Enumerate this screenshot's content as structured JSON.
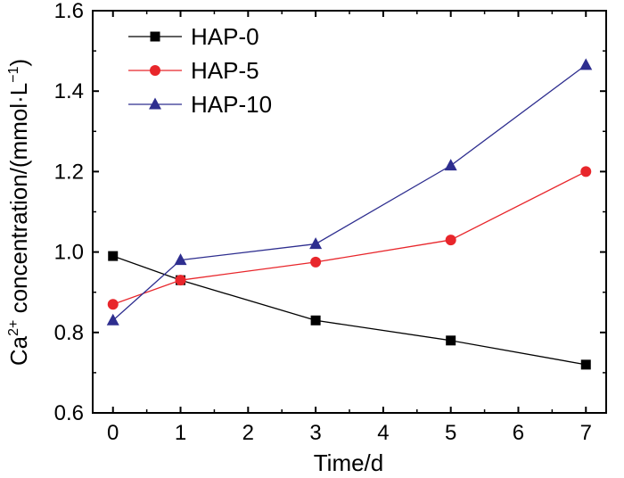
{
  "chart_data": {
    "type": "line",
    "title": "",
    "xlabel": "Time/d",
    "ylabel_parts": {
      "prefix": "Ca",
      "sup1": "2+",
      "middle": " concentration/(mmol·L",
      "sup2": "−1",
      "suffix": ")"
    },
    "xlim": [
      -0.3,
      7.3
    ],
    "ylim": [
      0.6,
      1.6
    ],
    "xticks": [
      0,
      1,
      2,
      3,
      4,
      5,
      6,
      7
    ],
    "yticks": [
      0.6,
      0.8,
      1.0,
      1.2,
      1.4,
      1.6
    ],
    "ytick_labels": [
      "0.6",
      "0.8",
      "1.0",
      "1.2",
      "1.4",
      "1.6"
    ],
    "x": [
      0,
      1,
      3,
      5,
      7
    ],
    "legend_position": "top-left",
    "series": [
      {
        "name": "HAP-0",
        "values": [
          0.99,
          0.93,
          0.83,
          0.78,
          0.72
        ],
        "color": "#000000",
        "marker": "square"
      },
      {
        "name": "HAP-5",
        "values": [
          0.87,
          0.93,
          0.975,
          1.03,
          1.2
        ],
        "color": "#e8262b",
        "marker": "circle"
      },
      {
        "name": "HAP-10",
        "values": [
          0.83,
          0.98,
          1.02,
          1.215,
          1.465
        ],
        "color": "#2e2e8f",
        "marker": "triangle"
      }
    ]
  }
}
